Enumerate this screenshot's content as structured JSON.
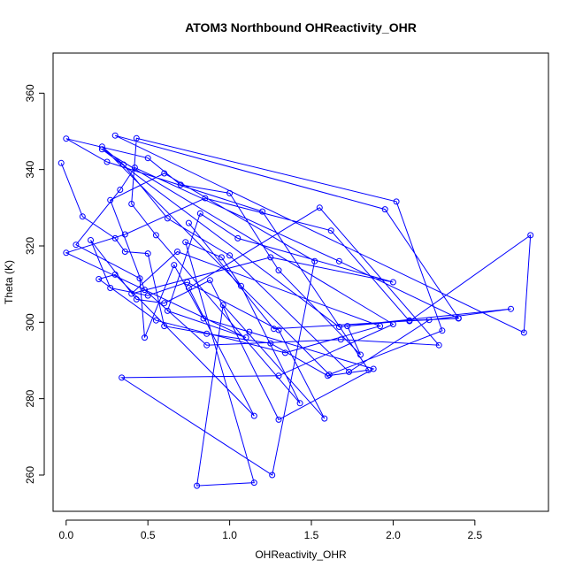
{
  "chart_data": {
    "type": "line",
    "title": "ATOM3 Northbound OHReactivity_OHR",
    "xlabel": "OHReactivity_OHR",
    "ylabel": "Theta (K)",
    "xlim": [
      -0.08,
      2.95
    ],
    "ylim": [
      250.5,
      370.5
    ],
    "xticks": [
      0.0,
      0.5,
      1.0,
      1.5,
      2.0,
      2.5
    ],
    "xtick_labels": [
      "0.0",
      "0.5",
      "1.0",
      "1.5",
      "2.0",
      "2.5"
    ],
    "yticks": [
      260,
      280,
      300,
      320,
      340,
      360
    ],
    "ytick_labels": [
      "260",
      "280",
      "300",
      "320",
      "340",
      "360"
    ],
    "grid": false,
    "legend": "none",
    "series": [
      {
        "color": "#0000ff",
        "marker": "open-circle",
        "points": [
          [
            -0.03,
            341.7
          ],
          [
            0.1,
            327.7
          ],
          [
            0.3,
            322.0
          ],
          [
            0.36,
            318.5
          ],
          [
            0.5,
            318.0
          ],
          [
            0.6,
            299.0
          ],
          [
            0.86,
            297.0
          ],
          [
            1.25,
            294.5
          ],
          [
            1.6,
            286.0
          ],
          [
            1.85,
            287.5
          ],
          [
            1.2,
            329.0
          ],
          [
            0.25,
            342.0
          ],
          [
            0.0,
            348.1
          ],
          [
            0.5,
            343.0
          ],
          [
            0.7,
            336.0
          ],
          [
            1.0,
            333.8
          ],
          [
            1.3,
            313.6
          ],
          [
            1.8,
            291.5
          ],
          [
            1.72,
            299.0
          ],
          [
            2.1,
            300.5
          ],
          [
            2.4,
            301.0
          ],
          [
            1.67,
            316.0
          ],
          [
            0.42,
            340.5
          ],
          [
            0.33,
            334.7
          ],
          [
            0.06,
            320.3
          ],
          [
            0.45,
            311.5
          ],
          [
            0.48,
            296.0
          ],
          [
            0.66,
            315.0
          ],
          [
            0.84,
            301.0
          ],
          [
            1.12,
            297.5
          ],
          [
            1.88,
            287.8
          ],
          [
            1.3,
            274.5
          ],
          [
            0.88,
            311.0
          ],
          [
            0.6,
            305.0
          ],
          [
            0.43,
            306.0
          ],
          [
            0.15,
            321.5
          ],
          [
            0.27,
            309.0
          ],
          [
            0.5,
            307.0
          ],
          [
            0.74,
            310.5
          ],
          [
            1.3,
            298.0
          ],
          [
            1.58,
            274.8
          ],
          [
            0.96,
            304.5
          ],
          [
            0.8,
            257.2
          ],
          [
            1.15,
            258.0
          ],
          [
            0.73,
            321.0
          ],
          [
            0.95,
            317.0
          ],
          [
            1.07,
            309.5
          ],
          [
            1.43,
            278.8
          ],
          [
            0.55,
            322.8
          ],
          [
            0.4,
            331.0
          ],
          [
            0.43,
            348.2
          ],
          [
            2.02,
            331.6
          ],
          [
            2.3,
            297.8
          ],
          [
            1.61,
            286.3
          ],
          [
            0.22,
            346.0
          ],
          [
            0.35,
            341.3
          ],
          [
            0.62,
            327.2
          ],
          [
            1.0,
            317.5
          ],
          [
            1.73,
            287.0
          ],
          [
            2.22,
            300.6
          ],
          [
            2.72,
            303.5
          ],
          [
            1.67,
            298.8
          ],
          [
            0.22,
            345.3
          ],
          [
            2.0,
            299.5
          ],
          [
            1.3,
            286.0
          ],
          [
            0.34,
            285.5
          ],
          [
            1.26,
            260.0
          ],
          [
            1.52,
            316.0
          ],
          [
            0.6,
            339.0
          ],
          [
            0.27,
            332.0
          ],
          [
            0.48,
            308.5
          ],
          [
            0.86,
            294.0
          ],
          [
            1.68,
            295.5
          ],
          [
            2.28,
            294.0
          ],
          [
            1.55,
            330.0
          ],
          [
            0.75,
            309.0
          ],
          [
            1.15,
            275.5
          ],
          [
            0.3,
            312.5
          ],
          [
            0.2,
            311.3
          ],
          [
            0.55,
            300.5
          ],
          [
            1.34,
            292.0
          ],
          [
            1.92,
            299.0
          ],
          [
            0.68,
            318.5
          ],
          [
            0.4,
            307.5
          ],
          [
            1.25,
            317.0
          ],
          [
            2.0,
            310.5
          ],
          [
            1.05,
            322.0
          ],
          [
            0.82,
            328.5
          ],
          [
            0.62,
            303.0
          ],
          [
            1.1,
            296.0
          ],
          [
            0.0,
            318.2
          ],
          [
            0.36,
            323.0
          ],
          [
            0.85,
            332.5
          ],
          [
            1.62,
            324.0
          ],
          [
            2.1,
            300.3
          ],
          [
            2.84,
            322.8
          ],
          [
            2.8,
            297.3
          ],
          [
            0.3,
            348.9
          ],
          [
            1.95,
            329.6
          ],
          [
            2.4,
            301.1
          ],
          [
            1.27,
            298.3
          ],
          [
            0.75,
            326.0
          ]
        ]
      }
    ]
  }
}
